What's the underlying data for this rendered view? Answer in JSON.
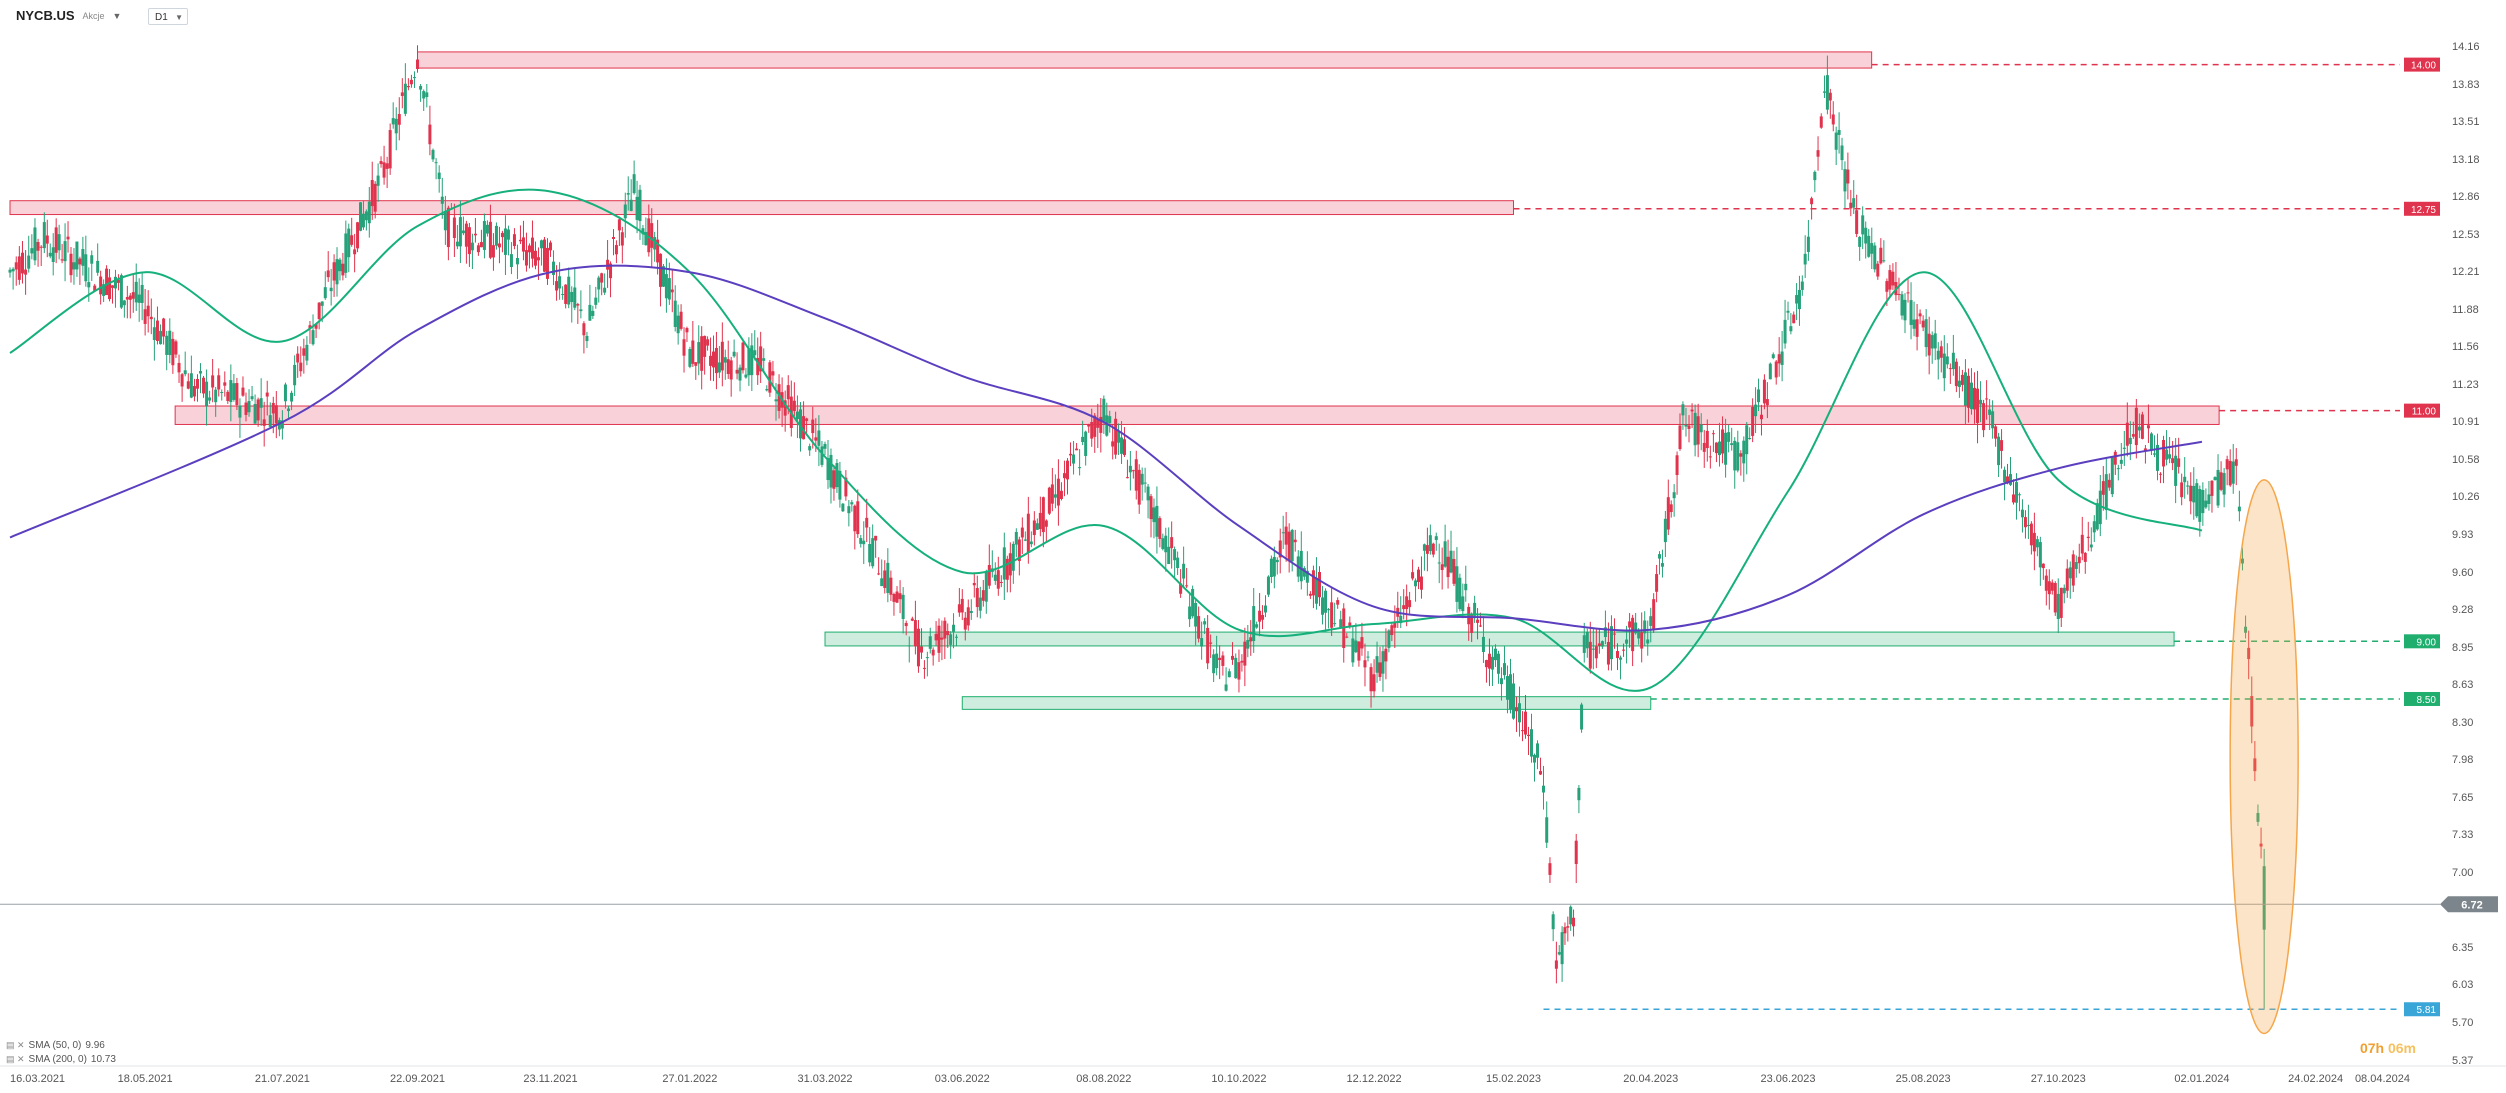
{
  "header": {
    "symbol": "NYCB.US",
    "subtitle": "Akcje",
    "timeframe": "D1"
  },
  "legend": [
    {
      "label": "SMA (50, 0)",
      "value": "9.96"
    },
    {
      "label": "SMA (200, 0)",
      "value": "10.73"
    }
  ],
  "timer": {
    "hours": "07h",
    "minutes": "06m"
  },
  "colors": {
    "up": "#26a17a",
    "down": "#e0334d",
    "sma50": "#16b07c",
    "sma200": "#5b3fbf",
    "resistance": "#e0334d",
    "support": "#1fae6e",
    "low": "#3aa6d8",
    "highlight": "#f5a64a"
  },
  "chart_data": {
    "type": "candlestick",
    "ylim": [
      5.37,
      14.3
    ],
    "price_ticks": [
      "14.16",
      "13.83",
      "13.51",
      "13.18",
      "12.86",
      "12.53",
      "12.21",
      "11.88",
      "11.56",
      "11.23",
      "10.91",
      "10.58",
      "10.26",
      "9.93",
      "9.60",
      "9.28",
      "8.95",
      "8.63",
      "8.30",
      "7.98",
      "7.65",
      "7.33",
      "7.00",
      "6.35",
      "6.03",
      "5.70",
      "5.37"
    ],
    "date_ticks": [
      "16.03.2021",
      "18.05.2021",
      "21.07.2021",
      "22.09.2021",
      "23.11.2021",
      "27.01.2022",
      "31.03.2022",
      "03.06.2022",
      "08.08.2022",
      "10.10.2022",
      "12.12.2022",
      "15.02.2023",
      "20.04.2023",
      "23.06.2023",
      "25.08.2023",
      "27.10.2023",
      "02.01.2024",
      "24.02.2024",
      "08.04.2024"
    ],
    "price_path": [
      [
        "16.03.2021",
        12.2
      ],
      [
        "01.04.2021",
        12.5
      ],
      [
        "18.05.2021",
        11.9
      ],
      [
        "10.06.2021",
        11.2
      ],
      [
        "21.07.2021",
        11.0
      ],
      [
        "10.08.2021",
        12.0
      ],
      [
        "05.09.2021",
        13.0
      ],
      [
        "22.09.2021",
        14.1
      ],
      [
        "05.10.2021",
        12.6
      ],
      [
        "23.11.2021",
        12.3
      ],
      [
        "10.12.2021",
        11.7
      ],
      [
        "01.01.2022",
        12.9
      ],
      [
        "27.01.2022",
        11.5
      ],
      [
        "01.03.2022",
        11.4
      ],
      [
        "31.03.2022",
        10.6
      ],
      [
        "25.04.2022",
        9.7
      ],
      [
        "15.05.2022",
        8.9
      ],
      [
        "03.06.2022",
        9.2
      ],
      [
        "15.07.2022",
        10.2
      ],
      [
        "08.08.2022",
        11.0
      ],
      [
        "10.09.2022",
        9.7
      ],
      [
        "01.10.2022",
        8.7
      ],
      [
        "10.10.2022",
        8.8
      ],
      [
        "01.11.2022",
        9.9
      ],
      [
        "12.12.2022",
        8.7
      ],
      [
        "10.01.2023",
        9.9
      ],
      [
        "01.02.2023",
        9.0
      ],
      [
        "15.02.2023",
        8.5
      ],
      [
        "01.03.2023",
        7.8
      ],
      [
        "07.03.2023",
        6.2
      ],
      [
        "15.03.2023",
        6.6
      ],
      [
        "20.03.2023",
        8.9
      ],
      [
        "20.04.2023",
        9.1
      ],
      [
        "05.05.2023",
        10.9
      ],
      [
        "01.06.2023",
        10.6
      ],
      [
        "23.06.2023",
        11.7
      ],
      [
        "01.07.2023",
        12.2
      ],
      [
        "10.07.2023",
        13.9
      ],
      [
        "25.07.2023",
        12.6
      ],
      [
        "25.08.2023",
        11.7
      ],
      [
        "25.09.2023",
        10.9
      ],
      [
        "27.10.2023",
        9.3
      ],
      [
        "10.11.2023",
        9.9
      ],
      [
        "01.12.2023",
        10.9
      ],
      [
        "01.01.2024",
        10.2
      ],
      [
        "18.01.2024",
        10.5
      ],
      [
        "31.01.2024",
        6.72
      ]
    ],
    "series": [
      {
        "name": "SMA (50, 0)",
        "points": [
          [
            "16.03.2021",
            11.5
          ],
          [
            "18.05.2021",
            12.2
          ],
          [
            "21.07.2021",
            11.6
          ],
          [
            "22.09.2021",
            12.6
          ],
          [
            "23.11.2021",
            12.9
          ],
          [
            "27.01.2022",
            12.2
          ],
          [
            "31.03.2022",
            10.6
          ],
          [
            "03.06.2022",
            9.6
          ],
          [
            "08.08.2022",
            10.0
          ],
          [
            "10.10.2022",
            9.1
          ],
          [
            "12.12.2022",
            9.15
          ],
          [
            "15.02.2023",
            9.2
          ],
          [
            "20.04.2023",
            8.6
          ],
          [
            "23.06.2023",
            10.3
          ],
          [
            "25.08.2023",
            12.2
          ],
          [
            "27.10.2023",
            10.4
          ],
          [
            "02.01.2024",
            9.96
          ]
        ]
      },
      {
        "name": "SMA (200, 0)",
        "points": [
          [
            "16.03.2021",
            9.9
          ],
          [
            "21.07.2021",
            10.9
          ],
          [
            "22.09.2021",
            11.7
          ],
          [
            "23.11.2021",
            12.2
          ],
          [
            "27.01.2022",
            12.2
          ],
          [
            "31.03.2022",
            11.8
          ],
          [
            "03.06.2022",
            11.3
          ],
          [
            "08.08.2022",
            10.9
          ],
          [
            "10.10.2022",
            10.0
          ],
          [
            "12.12.2022",
            9.3
          ],
          [
            "15.02.2023",
            9.2
          ],
          [
            "20.04.2023",
            9.1
          ],
          [
            "23.06.2023",
            9.4
          ],
          [
            "25.08.2023",
            10.1
          ],
          [
            "27.10.2023",
            10.5
          ],
          [
            "02.01.2024",
            10.73
          ]
        ]
      }
    ],
    "levels": [
      {
        "label": "14.00",
        "value": 14.0,
        "kind": "resistance"
      },
      {
        "label": "12.75",
        "value": 12.75,
        "kind": "resistance"
      },
      {
        "label": "11.00",
        "value": 11.0,
        "kind": "resistance"
      },
      {
        "label": "9.00",
        "value": 9.0,
        "kind": "support"
      },
      {
        "label": "8.50",
        "value": 8.5,
        "kind": "support"
      },
      {
        "label": "5.81",
        "value": 5.81,
        "kind": "low"
      }
    ],
    "current_price": "6.72",
    "zones": [
      {
        "from": "22.09.2021",
        "to": "01.08.2023",
        "low": 13.97,
        "high": 14.11,
        "kind": "resistance"
      },
      {
        "from": "16.03.2021",
        "to": "15.02.2023",
        "low": 12.7,
        "high": 12.82,
        "kind": "resistance"
      },
      {
        "from": "01.06.2021",
        "to": "10.01.2024",
        "low": 10.88,
        "high": 11.04,
        "kind": "resistance"
      },
      {
        "from": "31.03.2022",
        "to": "20.12.2023",
        "low": 8.96,
        "high": 9.08,
        "kind": "support"
      },
      {
        "from": "03.06.2022",
        "to": "20.04.2023",
        "low": 8.41,
        "high": 8.52,
        "kind": "support"
      }
    ]
  }
}
